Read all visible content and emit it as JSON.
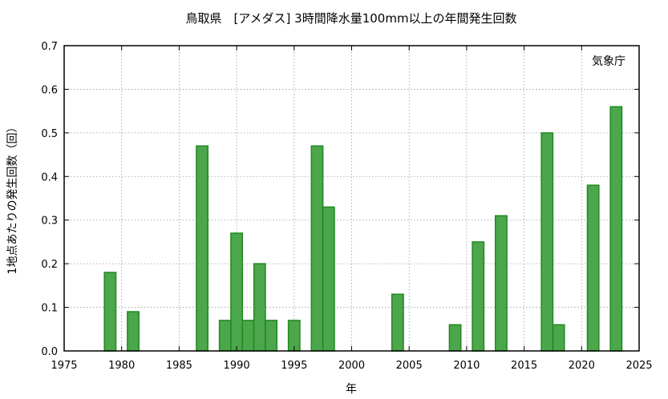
{
  "chart_data": {
    "type": "bar",
    "title": "鳥取県　[アメダス] 3時間降水量100mm以上の年間発生回数",
    "xlabel": "年",
    "ylabel": "1地点あたりの発生回数（回）",
    "credit": "気象庁",
    "xlim": [
      1975,
      2025
    ],
    "ylim": [
      0,
      0.7
    ],
    "x_ticks": [
      "1975",
      "1980",
      "1985",
      "1990",
      "1995",
      "2000",
      "2005",
      "2010",
      "2015",
      "2020",
      "2025"
    ],
    "y_ticks": [
      "0.0",
      "0.1",
      "0.2",
      "0.3",
      "0.4",
      "0.5",
      "0.6",
      "0.7"
    ],
    "grid": true,
    "bar_color": "#4ca64c",
    "bar_edge_color": "#1f8a1f",
    "x": [
      1979,
      1981,
      1987,
      1989,
      1990,
      1991,
      1992,
      1993,
      1995,
      1997,
      1998,
      2004,
      2009,
      2011,
      2013,
      2017,
      2018,
      2021,
      2023
    ],
    "values": [
      0.18,
      0.09,
      0.47,
      0.07,
      0.27,
      0.07,
      0.2,
      0.07,
      0.07,
      0.47,
      0.33,
      0.13,
      0.06,
      0.25,
      0.31,
      0.5,
      0.06,
      0.38,
      0.56
    ]
  }
}
